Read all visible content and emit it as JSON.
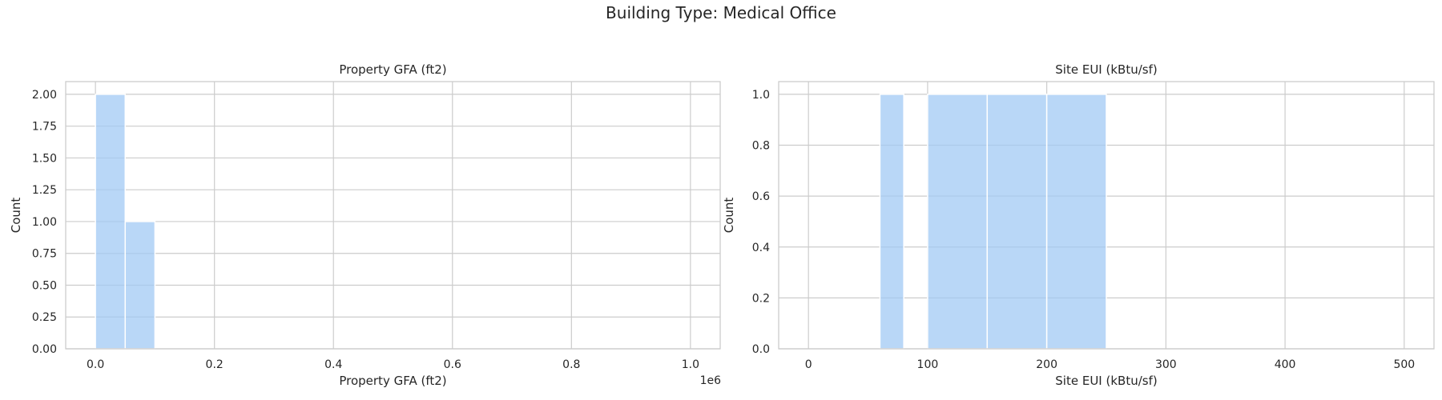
{
  "figure": {
    "title": "Building Type: Medical Office"
  },
  "chart_data": [
    {
      "type": "bar",
      "title": "Property GFA (ft2)",
      "xlabel": "Property GFA (ft2)",
      "ylabel": "Count",
      "offset_text": "1e6",
      "xlim": [
        -50000,
        1050000
      ],
      "ylim": [
        0,
        2.1
      ],
      "xticks": [
        0.0,
        0.2,
        0.4,
        0.6,
        0.8,
        1.0
      ],
      "xtick_labels": [
        "0.0",
        "0.2",
        "0.4",
        "0.6",
        "0.8",
        "1.0"
      ],
      "xtick_scale": 1000000,
      "yticks": [
        0.0,
        0.25,
        0.5,
        0.75,
        1.0,
        1.25,
        1.5,
        1.75,
        2.0
      ],
      "ytick_labels": [
        "0.00",
        "0.25",
        "0.50",
        "0.75",
        "1.00",
        "1.25",
        "1.50",
        "1.75",
        "2.00"
      ],
      "bins": [
        {
          "start": 0,
          "end": 50000,
          "count": 2
        },
        {
          "start": 50000,
          "end": 100000,
          "count": 1
        }
      ],
      "grid": true,
      "color": "#a1c9f4"
    },
    {
      "type": "bar",
      "title": "Site EUI (kBtu/sf)",
      "xlabel": "Site EUI (kBtu/sf)",
      "ylabel": "Count",
      "xlim": [
        -25,
        525
      ],
      "ylim": [
        0,
        1.05
      ],
      "xticks": [
        0,
        100,
        200,
        300,
        400,
        500
      ],
      "xtick_labels": [
        "0",
        "100",
        "200",
        "300",
        "400",
        "500"
      ],
      "xtick_scale": 1,
      "yticks": [
        0.0,
        0.2,
        0.4,
        0.6,
        0.8,
        1.0
      ],
      "ytick_labels": [
        "0.0",
        "0.2",
        "0.4",
        "0.6",
        "0.8",
        "1.0"
      ],
      "bins": [
        {
          "start": 60,
          "end": 80,
          "count": 1
        },
        {
          "start": 100,
          "end": 150,
          "count": 1
        },
        {
          "start": 150,
          "end": 200,
          "count": 1
        },
        {
          "start": 200,
          "end": 250,
          "count": 1
        }
      ],
      "grid": true,
      "color": "#a1c9f4"
    }
  ]
}
